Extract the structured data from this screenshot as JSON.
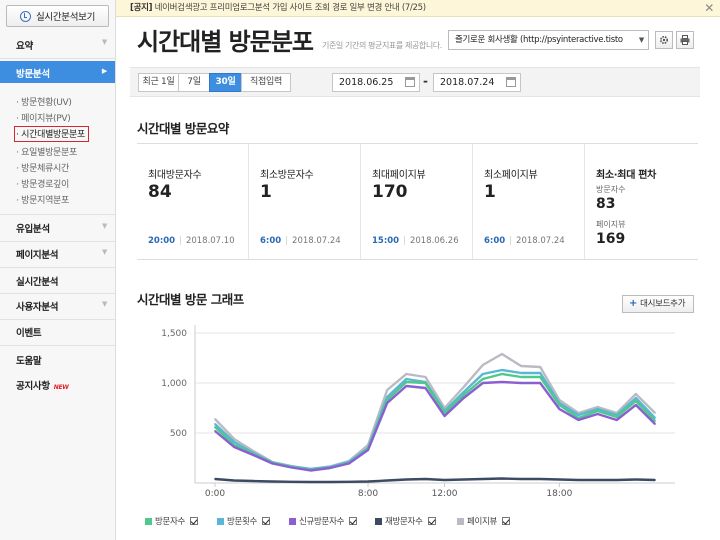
{
  "sidebar": {
    "realtime_button": "실시간분석보기",
    "summary": "요약",
    "visit": "방문분석",
    "visit_sub": [
      "방문현황(UV)",
      "페이지뷰(PV)",
      "시간대별방문분포",
      "요일별방문분포",
      "방문체류시간",
      "방문경로깊이",
      "방문지역분포"
    ],
    "inflow": "유입분석",
    "pageview": "페이지분석",
    "realtime": "실시간분석",
    "user": "사용자분석",
    "event": "이벤트",
    "help": "도움말",
    "notice": "공지사항",
    "new_badge": "NEW"
  },
  "notice": {
    "tag": "[공지]",
    "text": "네이버검색광고 프리미엄로그분석 가입 사이트 조회 경로 일부 변경 안내 (7/25)"
  },
  "header": {
    "title": "시간대별 방문분포",
    "description": "기준일 기간의 평균지표를 제공합니다.",
    "blog_select": "즐기로운 회사생활 (http://psyinteractive.tisto"
  },
  "filter": {
    "tabs": [
      "최근 1일",
      "7일",
      "30일",
      "직접입력"
    ],
    "active_tab": "30일",
    "start_date": "2018.06.25",
    "end_date": "2018.07.24",
    "separator": "-"
  },
  "summary": {
    "title": "시간대별 방문요약",
    "cards": [
      {
        "label": "최대방문자수",
        "value": "84",
        "time": "20:00",
        "date": "2018.07.10"
      },
      {
        "label": "최소방문자수",
        "value": "1",
        "time": "6:00",
        "date": "2018.07.24"
      },
      {
        "label": "최대페이지뷰",
        "value": "170",
        "time": "15:00",
        "date": "2018.06.26"
      },
      {
        "label": "최소페이지뷰",
        "value": "1",
        "time": "6:00",
        "date": "2018.07.24"
      }
    ],
    "deviation": {
      "label": "최소·최대 편차",
      "visitors_label": "방문자수",
      "visitors_value": "83",
      "pageviews_label": "페이지뷰",
      "pageviews_value": "169"
    }
  },
  "graph": {
    "title": "시간대별 방문 그래프",
    "dashboard_button": "대시보드추가"
  },
  "chart_data": {
    "type": "line",
    "x": [
      "0:00",
      "1:00",
      "2:00",
      "3:00",
      "4:00",
      "5:00",
      "6:00",
      "7:00",
      "8:00",
      "9:00",
      "10:00",
      "11:00",
      "12:00",
      "13:00",
      "14:00",
      "15:00",
      "16:00",
      "17:00",
      "18:00",
      "19:00",
      "20:00",
      "21:00",
      "22:00",
      "23:00"
    ],
    "xticks": [
      "0:00",
      "8:00",
      "12:00",
      "18:00"
    ],
    "yticks": [
      500,
      1000,
      1500
    ],
    "ytick_labels": [
      "500",
      "1,000",
      "1,500"
    ],
    "ylim": [
      0,
      1500
    ],
    "grid": true,
    "legend_position": "bottom",
    "series": [
      {
        "name": "방문자수",
        "color": "#4fc98a",
        "values": [
          560,
          380,
          290,
          200,
          160,
          130,
          150,
          200,
          340,
          830,
          1010,
          1000,
          700,
          880,
          1040,
          1090,
          1060,
          1060,
          780,
          650,
          720,
          660,
          820,
          620
        ]
      },
      {
        "name": "방문횟수",
        "color": "#5bb5d6",
        "values": [
          590,
          410,
          300,
          205,
          165,
          140,
          160,
          210,
          350,
          860,
          1040,
          1010,
          720,
          910,
          1090,
          1130,
          1100,
          1100,
          800,
          680,
          740,
          680,
          850,
          650
        ]
      },
      {
        "name": "신규방문자수",
        "color": "#8a5fd1",
        "values": [
          520,
          360,
          280,
          195,
          155,
          125,
          150,
          195,
          330,
          800,
          970,
          950,
          670,
          850,
          1000,
          1010,
          1000,
          1000,
          740,
          630,
          690,
          630,
          780,
          590
        ]
      },
      {
        "name": "재방문자수",
        "color": "#3c4a63",
        "values": [
          40,
          25,
          20,
          15,
          12,
          10,
          10,
          12,
          15,
          25,
          35,
          40,
          30,
          35,
          40,
          45,
          40,
          40,
          35,
          30,
          30,
          30,
          35,
          30
        ]
      },
      {
        "name": "페이지뷰",
        "color": "#b8bcc2",
        "values": [
          640,
          440,
          320,
          210,
          170,
          140,
          165,
          220,
          380,
          930,
          1090,
          1060,
          750,
          960,
          1180,
          1290,
          1170,
          1160,
          830,
          700,
          760,
          700,
          890,
          700
        ]
      }
    ]
  }
}
